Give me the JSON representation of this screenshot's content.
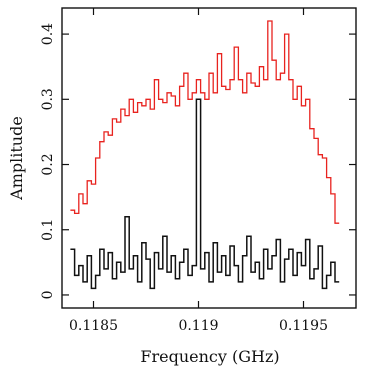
{
  "chart_data": {
    "type": "line",
    "xlabel": "Frequency (GHz)",
    "ylabel": "Amplitude",
    "xlim": [
      0.11835,
      0.11975
    ],
    "ylim": [
      -0.02,
      0.44
    ],
    "x_ticks": [
      0.1185,
      0.119,
      0.1195
    ],
    "x_tick_labels": [
      "0.1185",
      "0.119",
      "0.1195"
    ],
    "y_ticks": [
      0,
      0.1,
      0.2,
      0.3,
      0.4
    ],
    "y_tick_labels": [
      "0",
      "0.1",
      "0.2",
      "0.3",
      "0.4"
    ],
    "grid": false,
    "line_style": "step",
    "series": [
      {
        "color": "#e8231f",
        "x": [
          0.1184,
          0.11842,
          0.11844,
          0.11846,
          0.11848,
          0.1185,
          0.11852,
          0.11854,
          0.11856,
          0.11858,
          0.1186,
          0.11862,
          0.11864,
          0.11866,
          0.11868,
          0.1187,
          0.11872,
          0.11874,
          0.11876,
          0.11878,
          0.1188,
          0.11882,
          0.11884,
          0.11886,
          0.11888,
          0.1189,
          0.11892,
          0.11894,
          0.11896,
          0.11898,
          0.119,
          0.11902,
          0.11904,
          0.11906,
          0.11908,
          0.1191,
          0.11912,
          0.11914,
          0.11916,
          0.11918,
          0.1192,
          0.11922,
          0.11924,
          0.11926,
          0.11928,
          0.1193,
          0.11932,
          0.11934,
          0.11936,
          0.11938,
          0.1194,
          0.11942,
          0.11944,
          0.11946,
          0.11948,
          0.1195,
          0.11952,
          0.11954,
          0.11956,
          0.11958,
          0.1196,
          0.11962,
          0.11964,
          0.11966
        ],
        "values": [
          0.13,
          0.125,
          0.155,
          0.14,
          0.175,
          0.17,
          0.21,
          0.235,
          0.25,
          0.245,
          0.27,
          0.265,
          0.285,
          0.275,
          0.3,
          0.28,
          0.295,
          0.29,
          0.3,
          0.285,
          0.33,
          0.3,
          0.295,
          0.31,
          0.305,
          0.29,
          0.32,
          0.34,
          0.3,
          0.31,
          0.33,
          0.31,
          0.3,
          0.34,
          0.31,
          0.37,
          0.32,
          0.315,
          0.33,
          0.38,
          0.33,
          0.31,
          0.34,
          0.325,
          0.32,
          0.35,
          0.33,
          0.42,
          0.36,
          0.33,
          0.34,
          0.4,
          0.33,
          0.3,
          0.32,
          0.29,
          0.3,
          0.255,
          0.24,
          0.215,
          0.21,
          0.18,
          0.155,
          0.11
        ]
      },
      {
        "color": "#111111",
        "x": [
          0.1184,
          0.11842,
          0.11844,
          0.11846,
          0.11848,
          0.1185,
          0.11852,
          0.11854,
          0.11856,
          0.11858,
          0.1186,
          0.11862,
          0.11864,
          0.11866,
          0.11868,
          0.1187,
          0.11872,
          0.11874,
          0.11876,
          0.11878,
          0.1188,
          0.11882,
          0.11884,
          0.11886,
          0.11888,
          0.1189,
          0.11892,
          0.11894,
          0.11896,
          0.11898,
          0.119,
          0.11902,
          0.11904,
          0.11906,
          0.11908,
          0.1191,
          0.11912,
          0.11914,
          0.11916,
          0.11918,
          0.1192,
          0.11922,
          0.11924,
          0.11926,
          0.11928,
          0.1193,
          0.11932,
          0.11934,
          0.11936,
          0.11938,
          0.1194,
          0.11942,
          0.11944,
          0.11946,
          0.11948,
          0.1195,
          0.11952,
          0.11954,
          0.11956,
          0.11958,
          0.1196,
          0.11962,
          0.11964,
          0.11966
        ],
        "values": [
          0.07,
          0.03,
          0.045,
          0.02,
          0.06,
          0.01,
          0.03,
          0.07,
          0.04,
          0.065,
          0.025,
          0.05,
          0.035,
          0.12,
          0.04,
          0.06,
          0.02,
          0.08,
          0.055,
          0.01,
          0.065,
          0.04,
          0.09,
          0.035,
          0.06,
          0.025,
          0.05,
          0.07,
          0.03,
          0.045,
          0.3,
          0.04,
          0.065,
          0.02,
          0.08,
          0.035,
          0.06,
          0.03,
          0.075,
          0.045,
          0.02,
          0.06,
          0.09,
          0.035,
          0.05,
          0.025,
          0.07,
          0.04,
          0.06,
          0.085,
          0.02,
          0.055,
          0.07,
          0.03,
          0.065,
          0.045,
          0.085,
          0.025,
          0.04,
          0.075,
          0.01,
          0.03,
          0.05,
          0.02
        ]
      }
    ]
  }
}
